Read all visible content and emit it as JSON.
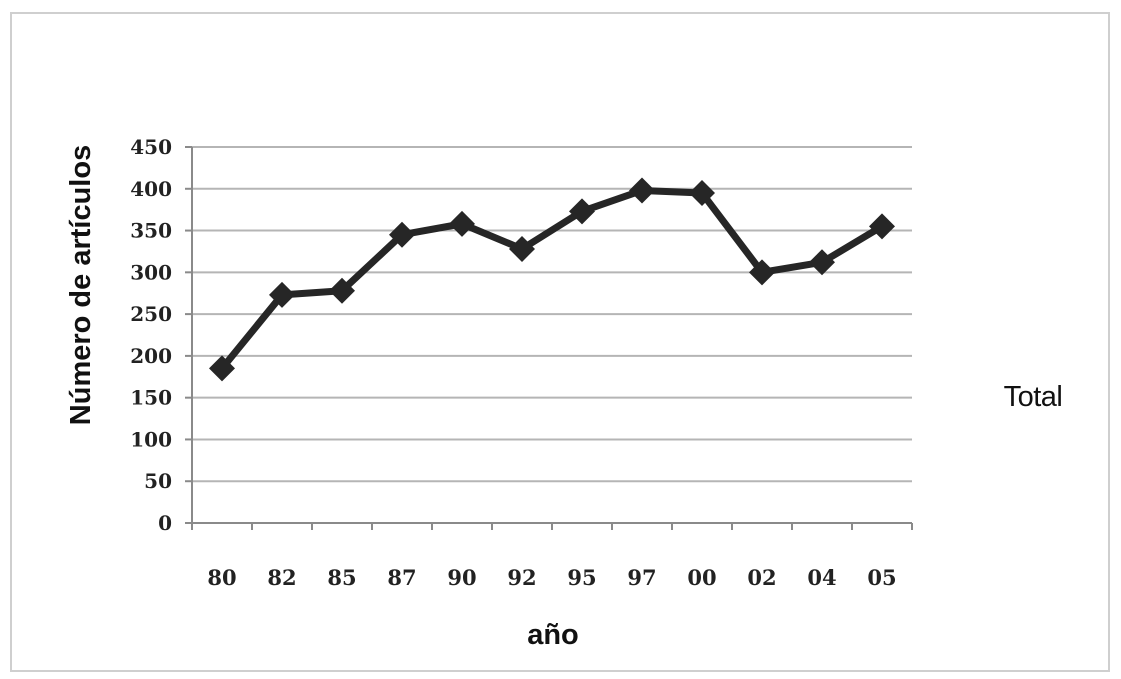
{
  "chart_data": {
    "type": "line",
    "title": "",
    "xlabel": "año",
    "ylabel": "Número de artículos",
    "categories": [
      "80",
      "82",
      "85",
      "87",
      "90",
      "92",
      "95",
      "97",
      "00",
      "02",
      "04",
      "05"
    ],
    "series": [
      {
        "name": "Total",
        "values": [
          185,
          273,
          278,
          345,
          358,
          328,
          373,
          398,
          395,
          300,
          312,
          355
        ]
      }
    ],
    "yticks": [
      "0",
      "50",
      "100",
      "150",
      "200",
      "250",
      "300",
      "350",
      "400",
      "450"
    ],
    "ylim": [
      0,
      450
    ],
    "grid": true,
    "legend_position": "right",
    "colors": {
      "line": "#262626",
      "grid": "#b5b5b5",
      "axis": "#8a8a8a"
    }
  }
}
